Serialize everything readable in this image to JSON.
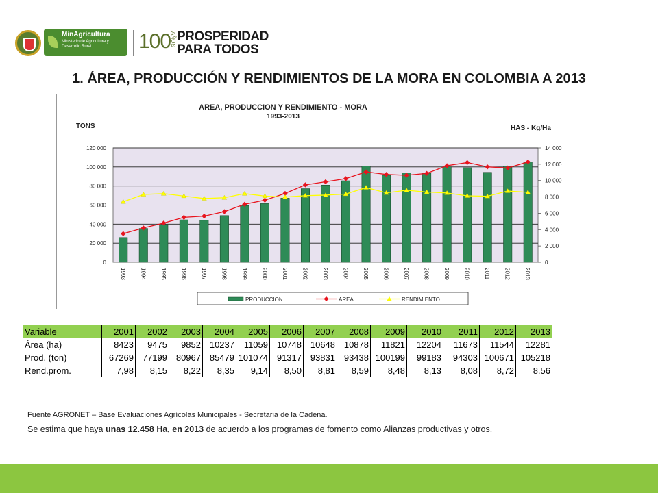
{
  "header": {
    "minagri_title": "MinAgricultura",
    "minagri_sub": "Ministerio de Agricultura y Desarrollo Rural",
    "anniversary": "100",
    "anos": "AÑOS",
    "prosperidad_line1": "PROSPERIDAD",
    "prosperidad_line2": "PARA TODOS"
  },
  "page_title": "1. ÁREA, PRODUCCIÓN Y RENDIMIENTOS DE LA MORA EN COLOMBIA A 2013",
  "chart_data": {
    "type": "bar",
    "title": "AREA, PRODUCCION Y RENDIMIENTO - MORA",
    "subtitle": "1993-2013",
    "ylabel_left": "TONS",
    "ylabel_right": "HAS - Kg/Ha",
    "categories": [
      "1993",
      "1994",
      "1995",
      "1996",
      "1997",
      "1998",
      "1999",
      "2000",
      "2001",
      "2002",
      "2003",
      "2004",
      "2005",
      "2006",
      "2007",
      "2008",
      "2009",
      "2010",
      "2011",
      "2012",
      "2013"
    ],
    "ylim_left": [
      0,
      120000
    ],
    "ylim_right": [
      0,
      14000
    ],
    "yticks_left": [
      "0",
      "20 000",
      "40 000",
      "60 000",
      "80 000",
      "100 000",
      "120 000"
    ],
    "yticks_right": [
      "0",
      "2 000",
      "4 000",
      "6 000",
      "8 000",
      "10 000",
      "12 000",
      "14 000"
    ],
    "grid": true,
    "legend_position": "bottom",
    "series": [
      {
        "name": "PRODUCCION",
        "kind": "bar",
        "axis": "left",
        "color": "#2e8b57",
        "values": [
          26000,
          35500,
          39500,
          44500,
          44000,
          49000,
          59500,
          61500,
          67269,
          77199,
          80967,
          85479,
          101074,
          91317,
          93831,
          93438,
          100199,
          99183,
          94303,
          100671,
          105218
        ]
      },
      {
        "name": "AREA",
        "kind": "line",
        "axis": "right",
        "color": "#e8141e",
        "values": [
          3500,
          4200,
          4800,
          5500,
          5650,
          6200,
          7100,
          7600,
          8423,
          9475,
          9852,
          10237,
          11059,
          10748,
          10648,
          10878,
          11821,
          12204,
          11673,
          11544,
          12281
        ]
      },
      {
        "name": "RENDIMIENTO",
        "kind": "line",
        "axis": "right",
        "color": "#ffff00",
        "values": [
          7400,
          8300,
          8400,
          8100,
          7800,
          7900,
          8400,
          8100,
          7980,
          8150,
          8220,
          8350,
          9140,
          8500,
          8810,
          8590,
          8480,
          8130,
          8080,
          8720,
          8560
        ]
      }
    ]
  },
  "table": {
    "header": [
      "Variable",
      "2001",
      "2002",
      "2003",
      "2004",
      "2005",
      "2006",
      "2007",
      "2008",
      "2009",
      "2010",
      "2011",
      "2012",
      "2013"
    ],
    "rows": [
      [
        "Área (ha)",
        "8423",
        "9475",
        "9852",
        "10237",
        "11059",
        "10748",
        "10648",
        "10878",
        "11821",
        "12204",
        "11673",
        "11544",
        "12281"
      ],
      [
        "Prod. (ton)",
        "67269",
        "77199",
        "80967",
        "85479",
        "101074",
        "91317",
        "93831",
        "93438",
        "100199",
        "99183",
        "94303",
        "100671",
        "105218"
      ],
      [
        "Rend.prom.",
        "7,98",
        "8,15",
        "8,22",
        "8,35",
        "9,14",
        "8,50",
        "8,81",
        "8,59",
        "8,48",
        "8,13",
        "8,08",
        "8,72",
        "8.56"
      ]
    ]
  },
  "source": "Fuente AGRONET – Base Evaluaciones Agrícolas Municipales - Secretaria de la Cadena.",
  "note": {
    "pre": "Se estima que haya ",
    "bold1": "unas 12.458 Ha, en 2013",
    "post": " de acuerdo a los programas de fomento como Alianzas productivas y otros."
  },
  "colors": {
    "footer_band": "#8cc640",
    "table_header": "#92d050",
    "plot_bg": "#e8e2ef"
  }
}
